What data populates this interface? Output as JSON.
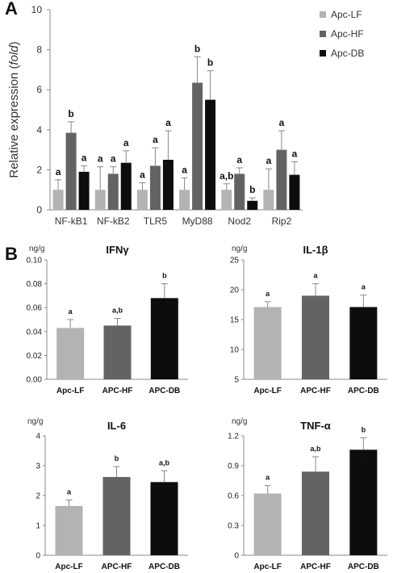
{
  "panels": {
    "a": "A",
    "b": "B"
  },
  "colors": {
    "lf": "#b3b3b3",
    "hf": "#636363",
    "db": "#0d0d0d",
    "axis": "#888888"
  },
  "chart_data": [
    {
      "type": "bar",
      "ylabel_main": "Relative expression (",
      "ylabel_italic": "fold",
      "ylabel_end": ")",
      "ylim": [
        0,
        10
      ],
      "yticks": [
        "0",
        "2",
        "4",
        "6",
        "8",
        "10"
      ],
      "categories": [
        "NF-kB1",
        "NF-kB2",
        "TLR5",
        "MyD88",
        "Nod2",
        "Rip2"
      ],
      "legend_position": "top-right",
      "series": [
        {
          "name": "Apc-LF",
          "values": [
            1,
            1,
            1,
            1,
            1,
            1
          ],
          "errors": [
            0.5,
            1.15,
            0.35,
            0.6,
            0.3,
            1.05
          ],
          "letters": [
            "a",
            "a",
            "a",
            "a",
            "a,b",
            "a"
          ]
        },
        {
          "name": "Apc-HF",
          "values": [
            3.85,
            1.8,
            2.2,
            6.35,
            1.8,
            3.0
          ],
          "errors": [
            0.55,
            0.35,
            0.9,
            1.3,
            0.3,
            0.95
          ],
          "letters": [
            "b",
            "a",
            "a",
            "b",
            "a",
            "a"
          ]
        },
        {
          "name": "Apc-DB",
          "values": [
            1.9,
            2.35,
            2.5,
            5.5,
            0.45,
            1.75
          ],
          "errors": [
            0.3,
            0.6,
            1.45,
            1.45,
            0.15,
            0.65
          ],
          "letters": [
            "a",
            "a",
            "a",
            "b",
            "b",
            "a"
          ]
        }
      ]
    },
    {
      "type": "bar",
      "title": "IFNγ",
      "unit": "ng/g",
      "ylim": [
        0,
        0.1
      ],
      "yticks": [
        "0.00",
        "0.02",
        "0.04",
        "0.06",
        "0.08",
        "0.10"
      ],
      "categories": [
        "Apc-LF",
        "APC-HF",
        "APC-DB"
      ],
      "values": [
        0.043,
        0.045,
        0.068
      ],
      "errors": [
        0.007,
        0.006,
        0.012
      ],
      "letters": [
        "a",
        "a,b",
        "b"
      ]
    },
    {
      "type": "bar",
      "title": "IL-1β",
      "unit": "ng/g",
      "ylim": [
        5,
        25
      ],
      "yticks": [
        "5",
        "10",
        "15",
        "20",
        "25"
      ],
      "categories": [
        "Apc-LF",
        "APC-HF",
        "APC-DB"
      ],
      "values": [
        17.1,
        19.0,
        17.1
      ],
      "errors": [
        0.9,
        2.0,
        2.0
      ],
      "letters": [
        "a",
        "a",
        "a"
      ]
    },
    {
      "type": "bar",
      "title": "IL-6",
      "unit": "ng/g",
      "ylim": [
        0,
        4
      ],
      "yticks": [
        "0",
        "1",
        "2",
        "3",
        "4"
      ],
      "categories": [
        "Apc-LF",
        "APC-HF",
        "APC-DB"
      ],
      "values": [
        1.65,
        2.62,
        2.45
      ],
      "errors": [
        0.2,
        0.35,
        0.38
      ],
      "letters": [
        "a",
        "b",
        "a,b"
      ]
    },
    {
      "type": "bar",
      "title": "TNF-α",
      "unit": "ng/g",
      "ylim": [
        0,
        1.2
      ],
      "yticks": [
        "0",
        "0.3",
        "0.6",
        "0.9",
        "1.2"
      ],
      "categories": [
        "Apc-LF",
        "APC-HF",
        "APC-DB"
      ],
      "values": [
        0.62,
        0.84,
        1.06
      ],
      "errors": [
        0.08,
        0.15,
        0.12
      ],
      "letters": [
        "a",
        "a,b",
        "b"
      ],
      "inner_label": "a,b"
    }
  ]
}
